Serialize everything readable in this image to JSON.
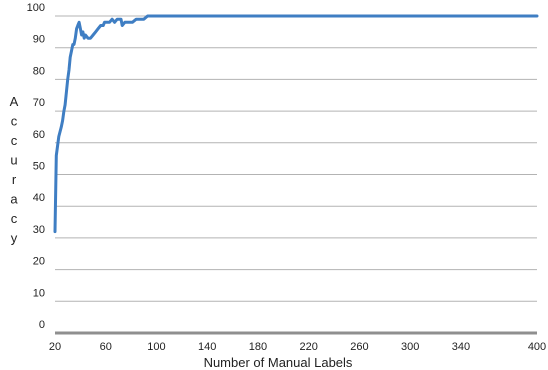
{
  "chart_data": {
    "type": "line",
    "title": "",
    "xlabel": "Number of Manual Labels",
    "ylabel": "Accuracy",
    "xlim": [
      20,
      400
    ],
    "ylim": [
      0,
      100
    ],
    "x_ticks": [
      "20",
      "60",
      "100",
      "140",
      "180",
      "220",
      "260",
      "300",
      "340",
      "400"
    ],
    "y_ticks": [
      "0",
      "10",
      "20",
      "30",
      "40",
      "50",
      "60",
      "70",
      "80",
      "90",
      "100"
    ],
    "grid": "horizontal",
    "colors": {
      "line": "#3f7ec3",
      "grid": "#b3b3b3",
      "baseline": "#8f8f8f"
    },
    "series": [
      {
        "values": [
          [
            20,
            32
          ],
          [
            21,
            56
          ],
          [
            23,
            62
          ],
          [
            25,
            65
          ],
          [
            26,
            67
          ],
          [
            27,
            70
          ],
          [
            28,
            72
          ],
          [
            29,
            76
          ],
          [
            30,
            80
          ],
          [
            31,
            83
          ],
          [
            32,
            87
          ],
          [
            33,
            89
          ],
          [
            34,
            91
          ],
          [
            35,
            91
          ],
          [
            36,
            93
          ],
          [
            37,
            96
          ],
          [
            38,
            97
          ],
          [
            39,
            98
          ],
          [
            40,
            96
          ],
          [
            41,
            94
          ],
          [
            42,
            95
          ],
          [
            43,
            93
          ],
          [
            44,
            94
          ],
          [
            46,
            93
          ],
          [
            48,
            93
          ],
          [
            50,
            94
          ],
          [
            52,
            95
          ],
          [
            54,
            96
          ],
          [
            56,
            97
          ],
          [
            58,
            97
          ],
          [
            59,
            98
          ],
          [
            61,
            98
          ],
          [
            63,
            98
          ],
          [
            65,
            99
          ],
          [
            67,
            98
          ],
          [
            69,
            99
          ],
          [
            71,
            99
          ],
          [
            72,
            99
          ],
          [
            73,
            97
          ],
          [
            75,
            98
          ],
          [
            78,
            98
          ],
          [
            81,
            98
          ],
          [
            84,
            99
          ],
          [
            87,
            99
          ],
          [
            90,
            99
          ],
          [
            93,
            100
          ],
          [
            96,
            100
          ],
          [
            99,
            100
          ],
          [
            102,
            100
          ],
          [
            104,
            100
          ],
          [
            106,
            100
          ],
          [
            108,
            100
          ],
          [
            110,
            100
          ],
          [
            113,
            100
          ],
          [
            116,
            100
          ],
          [
            120,
            100
          ],
          [
            125,
            100
          ],
          [
            130,
            100
          ],
          [
            140,
            100
          ],
          [
            150,
            100
          ],
          [
            160,
            100
          ],
          [
            170,
            100
          ],
          [
            180,
            100
          ],
          [
            190,
            100
          ],
          [
            200,
            100
          ],
          [
            210,
            100
          ],
          [
            220,
            100
          ],
          [
            230,
            100
          ],
          [
            240,
            100
          ],
          [
            250,
            100
          ],
          [
            260,
            100
          ],
          [
            270,
            100
          ],
          [
            280,
            100
          ],
          [
            290,
            100
          ],
          [
            300,
            100
          ],
          [
            310,
            100
          ],
          [
            320,
            100
          ],
          [
            330,
            100
          ],
          [
            340,
            100
          ],
          [
            350,
            100
          ],
          [
            360,
            100
          ],
          [
            370,
            100
          ],
          [
            380,
            100
          ],
          [
            390,
            100
          ],
          [
            400,
            100
          ]
        ]
      }
    ]
  }
}
